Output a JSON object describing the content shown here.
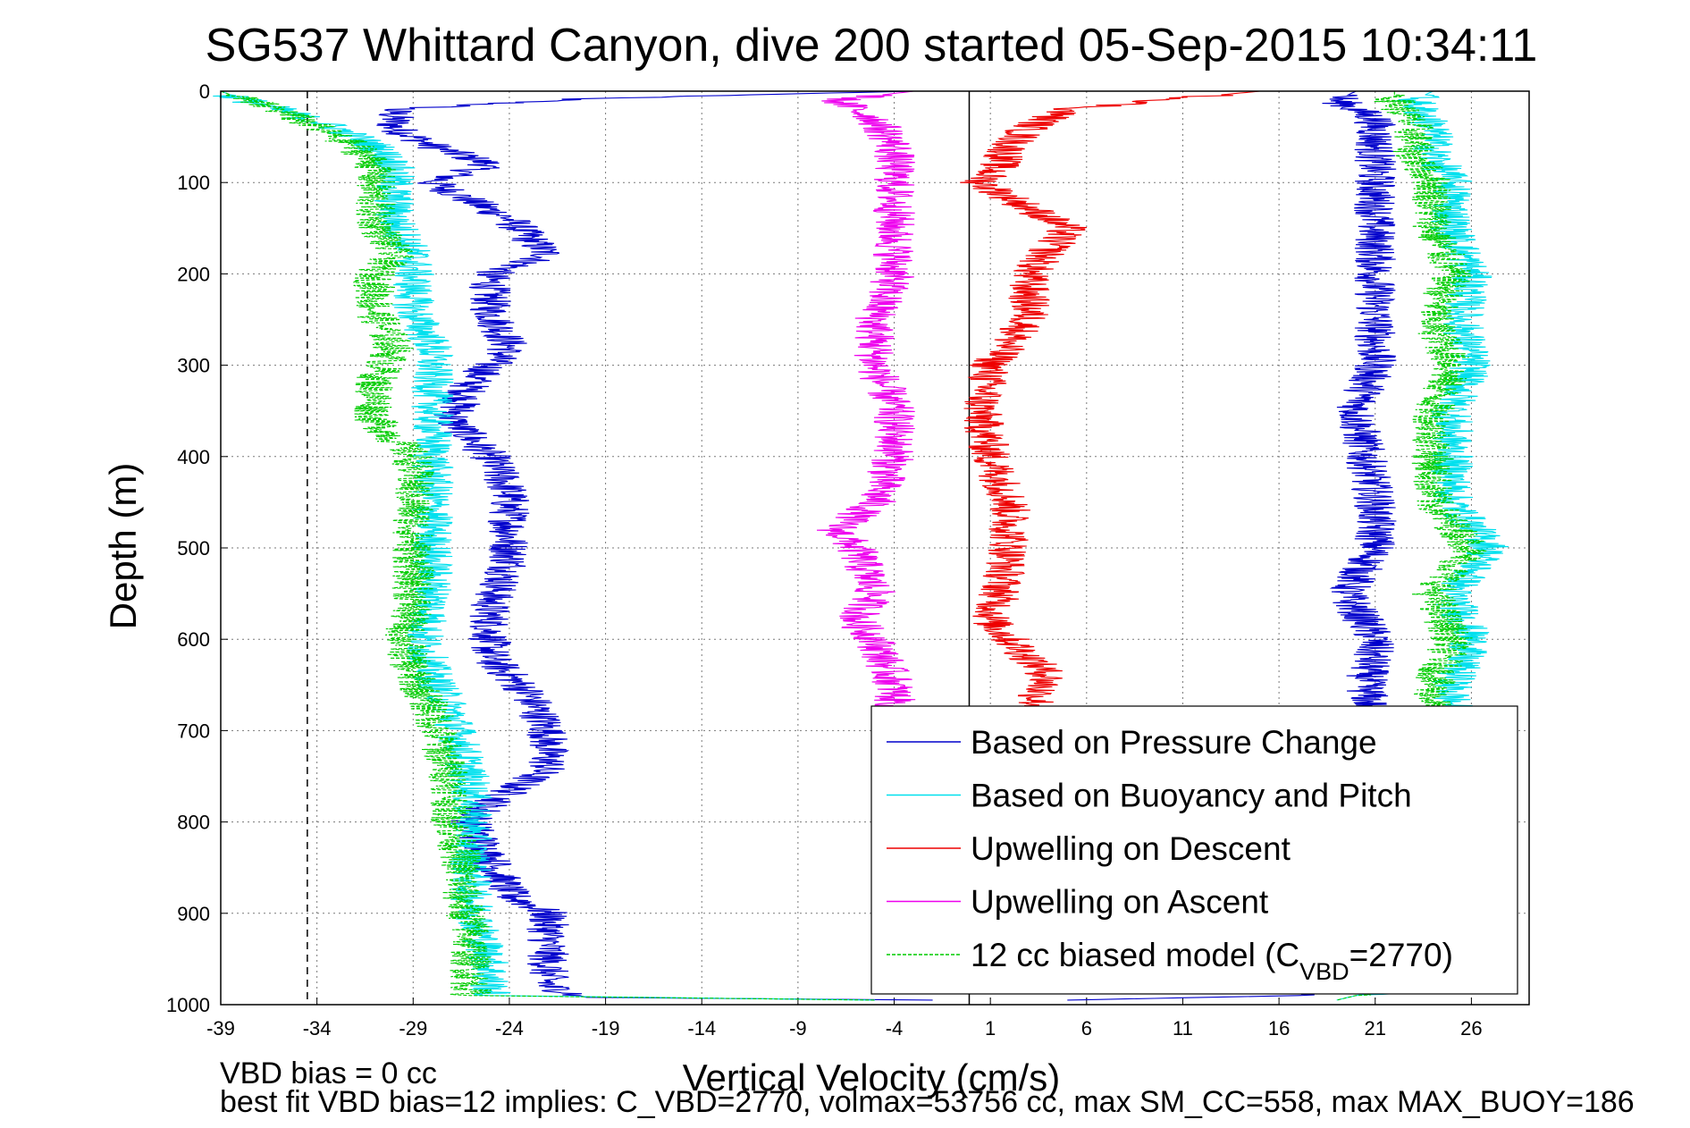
{
  "chart_data": {
    "type": "line",
    "title": "SG537 Whittard Canyon, dive 200 started 05-Sep-2015 10:34:11",
    "xlabel": "Vertical Velocity (cm/s)",
    "ylabel": "Depth (m)",
    "xlim": [
      -39,
      29
    ],
    "ylim": [
      1000,
      0
    ],
    "xticks": [
      "-39",
      "-34",
      "-29",
      "-24",
      "-19",
      "-14",
      "-9",
      "-4",
      "1",
      "6",
      "11",
      "16",
      "21",
      "26"
    ],
    "yticks": [
      "0",
      "100",
      "200",
      "300",
      "400",
      "500",
      "600",
      "700",
      "800",
      "900",
      "1000"
    ],
    "grid": true,
    "legend_position": "lower-right",
    "reference_lines": [
      {
        "x": -34.5,
        "style": "dashed",
        "color": "#000000"
      },
      {
        "x": -0.1,
        "style": "solid",
        "color": "#000000"
      }
    ],
    "series": [
      {
        "name": "Based on Pressure Change",
        "color": "#0000cc",
        "style": "solid",
        "segments": [
          {
            "depth": [
              0,
              8,
              20,
              40,
              60,
              80,
              100,
              120,
              140,
              160,
              180,
              200,
              240,
              280,
              320,
              360,
              400,
              440,
              480,
              520,
              560,
              600,
              620,
              660,
              700,
              740,
              780,
              800,
              840,
              880,
              900,
              940,
              980,
              992,
              995
            ],
            "velocity": [
              -3,
              -20,
              -30,
              -30,
              -28,
              -25,
              -28,
              -26,
              -24,
              -23,
              -22,
              -25,
              -25,
              -24,
              -26,
              -27,
              -25,
              -24,
              -24,
              -24,
              -25,
              -25,
              -25,
              -23,
              -22,
              -22,
              -25,
              -26,
              -25,
              -24,
              -22,
              -22,
              -22,
              -20,
              -2
            ]
          },
          {
            "depth": [
              0,
              10,
              30,
              60,
              100,
              150,
              200,
              250,
              300,
              350,
              400,
              450,
              500,
              550,
              600,
              650,
              700,
              750,
              800,
              850,
              900,
              950,
              980,
              990,
              995
            ],
            "velocity": [
              20,
              19,
              21,
              21,
              21,
              21,
              21,
              21,
              21,
              20,
              20.5,
              21,
              21,
              19.5,
              21,
              20.5,
              21,
              21,
              21,
              21,
              21,
              21,
              21,
              17,
              5
            ]
          }
        ]
      },
      {
        "name": "Based on Buoyancy and Pitch",
        "color": "#00e0ee",
        "style": "solid",
        "segments": [
          {
            "depth": [
              0,
              8,
              20,
              40,
              60,
              80,
              100,
              140,
              180,
              200,
              240,
              280,
              320,
              360,
              400,
              440,
              480,
              520,
              560,
              600,
              640,
              680,
              720,
              760,
              800,
              840,
              880,
              920,
              960,
              990,
              995
            ],
            "velocity": [
              -39,
              -38,
              -36,
              -33,
              -31,
              -30,
              -30,
              -30,
              -29,
              -29,
              -29,
              -28,
              -28,
              -28,
              -28,
              -28,
              -28,
              -28,
              -28,
              -28.5,
              -28,
              -27,
              -26.5,
              -26,
              -26,
              -26,
              -26,
              -25.5,
              -25,
              -25,
              -5
            ]
          },
          {
            "depth": [
              0,
              10,
              40,
              70,
              100,
              150,
              200,
              250,
              300,
              350,
              400,
              450,
              500,
              550,
              600,
              650,
              700,
              750,
              800,
              850,
              900,
              950,
              980,
              990,
              995
            ],
            "velocity": [
              24,
              23,
              24,
              24,
              25,
              25,
              26,
              25.5,
              26,
              25,
              25,
              25,
              27,
              25,
              26,
              25,
              25,
              25,
              25,
              25,
              25,
              25,
              25,
              20,
              19
            ]
          }
        ]
      },
      {
        "name": "Upwelling on Descent",
        "color": "#ee0000",
        "style": "solid",
        "segments": [
          {
            "depth": [
              0,
              10,
              20,
              40,
              60,
              80,
              100,
              150,
              200,
              250,
              300,
              350,
              400,
              450,
              500,
              550,
              580,
              600,
              620,
              640,
              660,
              700
            ],
            "velocity": [
              15,
              10,
              5,
              3,
              2,
              1.5,
              0.5,
              5,
              3,
              3,
              1,
              0.5,
              1,
              2,
              2,
              1.5,
              1,
              2,
              3,
              4,
              3.5,
              3
            ]
          }
        ]
      },
      {
        "name": "Upwelling on Ascent",
        "color": "#ee00ee",
        "style": "solid",
        "segments": [
          {
            "depth": [
              0,
              10,
              30,
              60,
              100,
              150,
              200,
              250,
              300,
              350,
              400,
              450,
              480,
              500,
              550,
              580,
              600,
              650,
              690
            ],
            "velocity": [
              -3,
              -7,
              -5,
              -4,
              -4,
              -4,
              -4,
              -5,
              -5,
              -4,
              -4,
              -5,
              -7,
              -6,
              -5,
              -6,
              -5,
              -4,
              -4
            ]
          }
        ]
      },
      {
        "name": "12 cc biased model (C",
        "name_subscript": "VBD",
        "name_suffix": "=2770)",
        "color": "#00cc00",
        "style": "dashed",
        "segments": [
          {
            "depth": [
              0,
              8,
              20,
              40,
              60,
              80,
              100,
              140,
              180,
              200,
              240,
              280,
              320,
              360,
              400,
              440,
              480,
              520,
              560,
              600,
              640,
              680,
              720,
              760,
              800,
              840,
              880,
              920,
              960,
              990,
              995
            ],
            "velocity": [
              -39,
              -38,
              -36,
              -34,
              -32,
              -31,
              -31,
              -31,
              -30,
              -31,
              -31,
              -30,
              -31,
              -31,
              -29,
              -29,
              -29,
              -29,
              -29,
              -29.5,
              -29,
              -28,
              -27.5,
              -27,
              -27,
              -26.5,
              -26.5,
              -26,
              -26,
              -26,
              -5
            ]
          },
          {
            "depth": [
              0,
              10,
              40,
              70,
              100,
              150,
              200,
              250,
              300,
              350,
              400,
              450,
              500,
              550,
              600,
              650,
              700,
              750,
              800,
              850,
              900,
              950,
              980,
              990,
              995
            ],
            "velocity": [
              22,
              22,
              23,
              23,
              24,
              24,
              25,
              24,
              25,
              24,
              24,
              24,
              26,
              24,
              25,
              24,
              24,
              24,
              24,
              24,
              24,
              24,
              24,
              20,
              19
            ]
          }
        ]
      }
    ],
    "annotations": {
      "footer_line1": "VBD bias = 0 cc",
      "footer_line2": "best fit VBD bias=12 implies: C_VBD=2770, volmax=53756 cc, max SM_CC=558, max MAX_BUOY=186"
    }
  }
}
